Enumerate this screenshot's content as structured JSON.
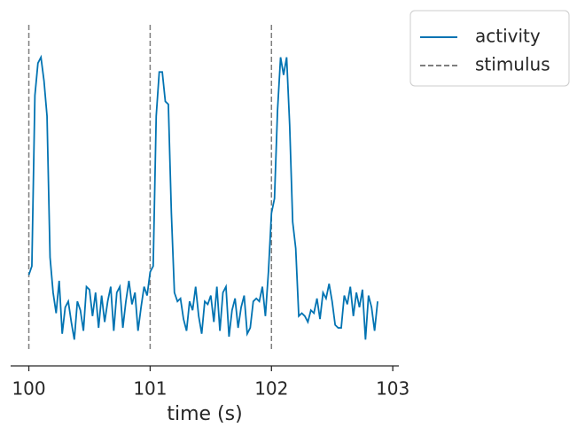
{
  "chart_data": {
    "type": "line",
    "xlabel": "time (s)",
    "x": [
      100,
      100.025,
      100.05,
      100.075,
      100.1,
      100.125,
      100.15,
      100.175,
      100.2,
      100.225,
      100.25,
      100.275,
      100.3,
      100.325,
      100.35,
      100.375,
      100.4,
      100.425,
      100.45,
      100.475,
      100.5,
      100.525,
      100.55,
      100.575,
      100.6,
      100.625,
      100.65,
      100.675,
      100.7,
      100.725,
      100.75,
      100.775,
      100.8,
      100.825,
      100.85,
      100.875,
      100.9,
      100.925,
      100.95,
      100.975,
      101,
      101.025,
      101.05,
      101.075,
      101.1,
      101.125,
      101.15,
      101.175,
      101.2,
      101.225,
      101.25,
      101.275,
      101.3,
      101.325,
      101.35,
      101.375,
      101.4,
      101.425,
      101.45,
      101.475,
      101.5,
      101.525,
      101.55,
      101.575,
      101.6,
      101.625,
      101.65,
      101.675,
      101.7,
      101.725,
      101.75,
      101.775,
      101.8,
      101.825,
      101.85,
      101.875,
      101.9,
      101.925,
      101.95,
      101.975,
      102,
      102.025,
      102.05,
      102.075,
      102.1,
      102.125,
      102.15,
      102.175,
      102.2,
      102.225,
      102.25,
      102.275,
      102.3,
      102.325,
      102.35,
      102.375,
      102.4,
      102.425,
      102.45,
      102.475,
      102.5,
      102.525,
      102.55,
      102.575,
      102.6,
      102.625,
      102.65,
      102.675,
      102.7,
      102.725,
      102.75,
      102.775,
      102.8,
      102.825,
      102.85,
      102.875
    ],
    "series": [
      {
        "name": "activity",
        "color": "#0173b2",
        "values": [
          0.24,
          0.27,
          0.85,
          0.96,
          0.98,
          0.9,
          0.78,
          0.3,
          0.18,
          0.11,
          0.22,
          0.04,
          0.13,
          0.15,
          0.08,
          0.02,
          0.15,
          0.12,
          0.05,
          0.2,
          0.19,
          0.1,
          0.18,
          0.06,
          0.17,
          0.08,
          0.15,
          0.2,
          0.05,
          0.18,
          0.2,
          0.06,
          0.15,
          0.22,
          0.14,
          0.18,
          0.05,
          0.13,
          0.2,
          0.17,
          0.25,
          0.27,
          0.78,
          0.93,
          0.93,
          0.83,
          0.82,
          0.45,
          0.18,
          0.15,
          0.16,
          0.09,
          0.05,
          0.15,
          0.12,
          0.2,
          0.1,
          0.04,
          0.15,
          0.14,
          0.17,
          0.08,
          0.2,
          0.05,
          0.18,
          0.2,
          0.03,
          0.12,
          0.16,
          0.06,
          0.13,
          0.17,
          0.04,
          0.06,
          0.15,
          0.16,
          0.15,
          0.2,
          0.1,
          0.25,
          0.45,
          0.5,
          0.8,
          0.98,
          0.92,
          0.98,
          0.75,
          0.42,
          0.33,
          0.1,
          0.11,
          0.1,
          0.08,
          0.12,
          0.11,
          0.16,
          0.09,
          0.18,
          0.16,
          0.21,
          0.15,
          0.07,
          0.06,
          0.06,
          0.17,
          0.14,
          0.2,
          0.1,
          0.18,
          0.13,
          0.19,
          0.02,
          0.17,
          0.13,
          0.05,
          0.15
        ]
      }
    ],
    "stimulus": {
      "name": "stimulus",
      "color": "#7f7f7f",
      "x": [
        100,
        101,
        102
      ]
    },
    "xlim": [
      99.85,
      103.05
    ],
    "xticks": [
      100,
      101,
      102,
      103
    ],
    "ylim": [
      0,
      1
    ],
    "legend": "outside upper right"
  }
}
